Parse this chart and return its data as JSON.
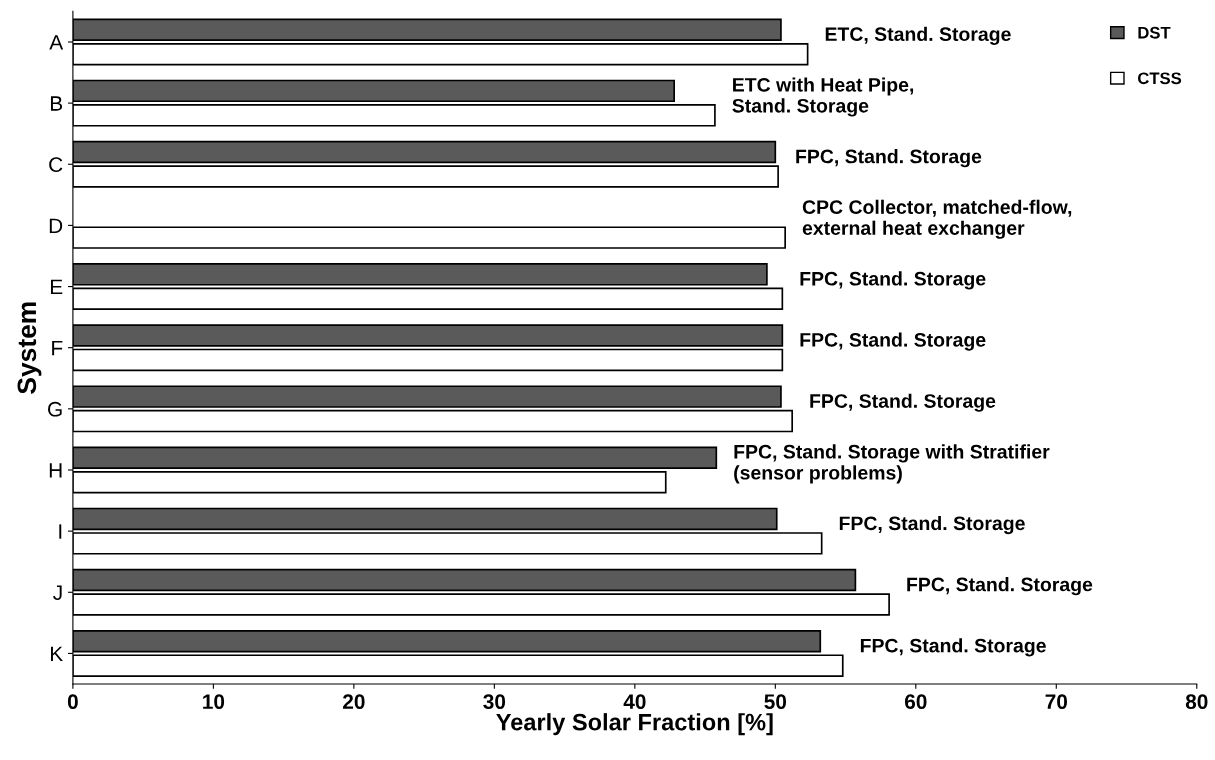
{
  "chart_data": {
    "type": "bar",
    "orientation": "horizontal",
    "xlabel": "Yearly Solar Fraction [%]",
    "ylabel": "System",
    "categories": [
      "A",
      "B",
      "C",
      "D",
      "E",
      "F",
      "G",
      "H",
      "I",
      "J",
      "K"
    ],
    "series": [
      {
        "name": "DST",
        "color": "#5a5a5a",
        "values": [
          50.4,
          42.8,
          50.0,
          null,
          49.4,
          50.5,
          50.4,
          45.8,
          50.1,
          55.7,
          53.2
        ]
      },
      {
        "name": "CTSS",
        "color": "#ffffff",
        "values": [
          52.3,
          45.7,
          50.2,
          50.7,
          50.5,
          50.5,
          51.2,
          42.2,
          53.3,
          58.1,
          54.8
        ]
      }
    ],
    "xlim": [
      0,
      80
    ],
    "xticks": [
      0,
      10,
      20,
      30,
      40,
      50,
      60,
      70,
      80
    ],
    "grid": false,
    "legend": "top right",
    "annotations": [
      "ETC, Stand. Storage",
      "ETC with Heat Pipe,\nStand. Storage",
      "FPC, Stand. Storage",
      "CPC Collector, matched-flow,\nexternal heat exchanger",
      "FPC, Stand. Storage",
      "FPC, Stand. Storage",
      "FPC, Stand. Storage",
      "FPC, Stand. Storage with Stratifier\n(sensor problems)",
      "FPC, Stand. Storage",
      "FPC, Stand. Storage",
      "FPC, Stand. Storage"
    ]
  }
}
